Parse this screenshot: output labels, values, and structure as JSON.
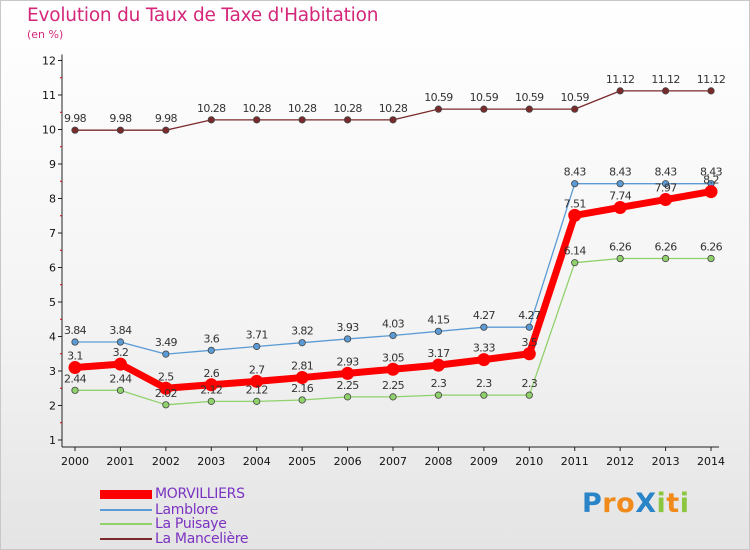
{
  "title": "Evolution du Taux de Taxe d'Habitation",
  "subtitle": "(en %)",
  "logo": {
    "letters": [
      {
        "ch": "P",
        "color": "#2a84c8"
      },
      {
        "ch": "r",
        "color": "#f08a1a"
      },
      {
        "ch": "o",
        "color": "#f08a1a"
      },
      {
        "ch": "X",
        "color": "#2a84c8"
      },
      {
        "ch": "i",
        "color": "#8cc63f"
      },
      {
        "ch": "t",
        "color": "#f08a1a"
      },
      {
        "ch": "i",
        "color": "#8cc63f"
      }
    ]
  },
  "chart_data": {
    "type": "line",
    "x": [
      "2000",
      "2001",
      "2002",
      "2003",
      "2004",
      "2005",
      "2006",
      "2007",
      "2008",
      "2009",
      "2010",
      "2011",
      "2012",
      "2013",
      "2014"
    ],
    "yticks": [
      "1",
      "2",
      "3",
      "4",
      "5",
      "6",
      "7",
      "8",
      "9",
      "10",
      "11",
      "12"
    ],
    "ylim": [
      1,
      12
    ],
    "grid": false,
    "legend_position": "bottom-left",
    "series": [
      {
        "name": "MORVILLIERS",
        "color": "#ff0000",
        "values": [
          3.1,
          3.2,
          2.5,
          2.6,
          2.7,
          2.81,
          2.93,
          3.05,
          3.17,
          3.33,
          3.5,
          7.51,
          7.74,
          7.97,
          8.2
        ],
        "labels": [
          "3.1",
          "3.2",
          "2.5",
          "2.6",
          "2.7",
          "2.81",
          "2.93",
          "3.05",
          "3.17",
          "3.33",
          "3.5",
          "7.51",
          "7.74",
          "7.97",
          "8.2"
        ]
      },
      {
        "name": "Lamblore",
        "color": "#5b9bd5",
        "values": [
          3.84,
          3.84,
          3.49,
          3.6,
          3.71,
          3.82,
          3.93,
          4.03,
          4.15,
          4.27,
          4.27,
          8.43,
          8.43,
          8.43,
          8.43
        ],
        "labels": [
          "3.84",
          "3.84",
          "3.49",
          "3.6",
          "3.71",
          "3.82",
          "3.93",
          "4.03",
          "4.15",
          "4.27",
          "4.27",
          "8.43",
          "8.43",
          "8.43",
          "8.43"
        ]
      },
      {
        "name": "La Puisaye",
        "color": "#8fd16a",
        "values": [
          2.44,
          2.44,
          2.02,
          2.12,
          2.12,
          2.16,
          2.25,
          2.25,
          2.3,
          2.3,
          2.3,
          6.14,
          6.26,
          6.26,
          6.26
        ],
        "labels": [
          "2.44",
          "2.44",
          "2.02",
          "2.12",
          "2.12",
          "2.16",
          "2.25",
          "2.25",
          "2.3",
          "2.3",
          "2.3",
          "6.14",
          "6.26",
          "6.26",
          "6.26"
        ]
      },
      {
        "name": "La Mancelière",
        "color": "#7a2a2a",
        "values": [
          9.98,
          9.98,
          9.98,
          10.28,
          10.28,
          10.28,
          10.28,
          10.28,
          10.59,
          10.59,
          10.59,
          10.59,
          11.12,
          11.12,
          11.12
        ],
        "labels": [
          "9.98",
          "9.98",
          "9.98",
          "10.28",
          "10.28",
          "10.28",
          "10.28",
          "10.28",
          "10.59",
          "10.59",
          "10.59",
          "10.59",
          "11.12",
          "11.12",
          "11.12"
        ]
      }
    ]
  }
}
